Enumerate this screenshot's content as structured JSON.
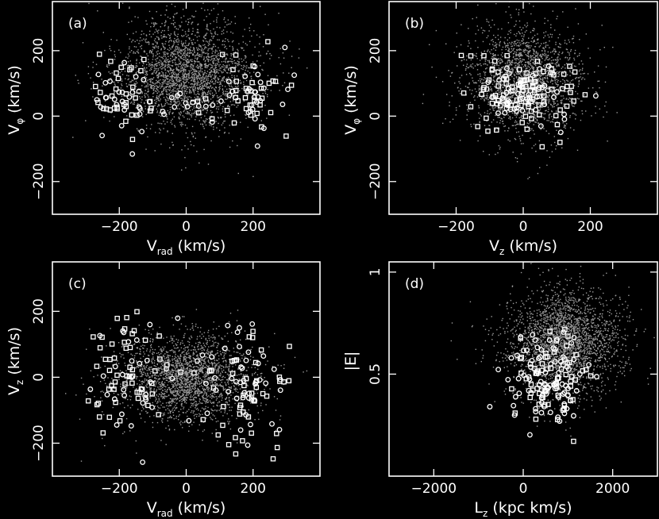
{
  "chart_data": [
    {
      "type": "scatter",
      "panel_label": "(a)",
      "xlabel": "V",
      "xlabel_sub": "rad",
      "xlabel_unit": " (km/s)",
      "ylabel": "V",
      "ylabel_sub": "φ",
      "ylabel_unit": " (km/s)",
      "xlim": [
        -400,
        400
      ],
      "ylim": [
        -300,
        350
      ],
      "xticks": [
        -200,
        0,
        200
      ],
      "yticks": [
        -200,
        0,
        200
      ],
      "xticklabels": [
        "−200",
        "0",
        "200"
      ],
      "yticklabels": [
        "−200",
        "0",
        "200"
      ],
      "background_density": {
        "cx": 0,
        "cy": 130,
        "sx": 110,
        "sy": 90,
        "n": 2600,
        "seed": 11
      },
      "stars_blobs": [
        {
          "cx": -200,
          "cy": 60,
          "sx": 45,
          "sy": 55,
          "n": 55
        },
        {
          "cx": 210,
          "cy": 70,
          "sx": 50,
          "sy": 60,
          "n": 55
        },
        {
          "cx": 0,
          "cy": 30,
          "sx": 90,
          "sy": 20,
          "n": 25
        }
      ],
      "stars_seed": 101
    },
    {
      "type": "scatter",
      "panel_label": "(b)",
      "xlabel": "V",
      "xlabel_sub": "z",
      "xlabel_unit": " (km/s)",
      "ylabel": "V",
      "ylabel_sub": "φ",
      "ylabel_unit": " (km/s)",
      "xlim": [
        -400,
        400
      ],
      "ylim": [
        -300,
        350
      ],
      "xticks": [
        -200,
        0,
        200
      ],
      "yticks": [
        -200,
        0,
        200
      ],
      "xticklabels": [
        "−200",
        "0",
        "200"
      ],
      "yticklabels": [
        "−200",
        "0",
        "200"
      ],
      "background_density": {
        "cx": 0,
        "cy": 110,
        "sx": 90,
        "sy": 90,
        "n": 2200,
        "seed": 22
      },
      "stars_blobs": [
        {
          "cx": 0,
          "cy": 70,
          "sx": 75,
          "sy": 60,
          "n": 150
        }
      ],
      "stars_seed": 202
    },
    {
      "type": "scatter",
      "panel_label": "(c)",
      "xlabel": "V",
      "xlabel_sub": "rad",
      "xlabel_unit": " (km/s)",
      "ylabel": "V",
      "ylabel_sub": "z",
      "ylabel_unit": " (km/s)",
      "xlim": [
        -400,
        400
      ],
      "ylim": [
        -300,
        350
      ],
      "xticks": [
        -200,
        0,
        200
      ],
      "yticks": [
        -200,
        0,
        200
      ],
      "xticklabels": [
        "−200",
        "0",
        "200"
      ],
      "yticklabels": [
        "−200",
        "0",
        "200"
      ],
      "background_density": {
        "cx": 0,
        "cy": 0,
        "sx": 110,
        "sy": 70,
        "n": 2400,
        "seed": 33
      },
      "stars_blobs": [
        {
          "cx": -190,
          "cy": 0,
          "sx": 50,
          "sy": 90,
          "n": 75
        },
        {
          "cx": 200,
          "cy": -20,
          "sx": 60,
          "sy": 85,
          "n": 80
        },
        {
          "cx": 0,
          "cy": 10,
          "sx": 70,
          "sy": 60,
          "n": 20
        }
      ],
      "stars_seed": 303
    },
    {
      "type": "scatter",
      "panel_label": "(d)",
      "xlabel": "L",
      "xlabel_sub": "z",
      "xlabel_unit": " (kpc km/s)",
      "ylabel": "|E|",
      "ylabel_sub": "",
      "ylabel_unit": "",
      "xlim": [
        -3000,
        3000
      ],
      "ylim": [
        0,
        1.05
      ],
      "xticks": [
        -2000,
        0,
        2000
      ],
      "yticks": [
        0.5,
        1
      ],
      "xticklabels": [
        "−2000",
        "0",
        "2000"
      ],
      "yticklabels": [
        "0.5",
        "1"
      ],
      "background_density": {
        "cx": 900,
        "cy": 0.66,
        "sx": 700,
        "sy": 0.14,
        "n": 2600,
        "seed": 44
      },
      "stars_blobs": [
        {
          "cx": 550,
          "cy": 0.48,
          "sx": 420,
          "sy": 0.12,
          "n": 150
        }
      ],
      "stars_seed": 404
    }
  ]
}
